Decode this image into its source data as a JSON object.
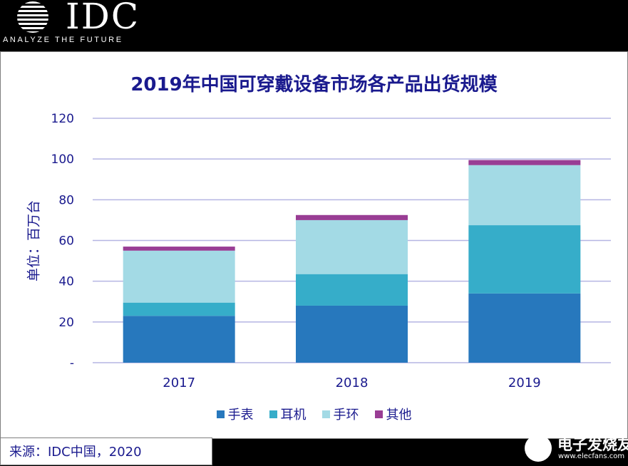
{
  "header": {
    "logo_text": "IDC",
    "tagline": "ANALYZE THE FUTURE"
  },
  "chart_data": {
    "type": "bar",
    "stacked": true,
    "title": "2019年中国可穿戴设备市场各产品出货规模",
    "ylabel": "单位：百万台",
    "xlabel": "",
    "categories": [
      "2017",
      "2018",
      "2019"
    ],
    "ylim": [
      0,
      120
    ],
    "yticks": [
      0,
      20,
      40,
      60,
      80,
      100,
      120
    ],
    "ytick_labels": [
      "-",
      "20",
      "40",
      "60",
      "80",
      "100",
      "120"
    ],
    "grid": true,
    "legend_position": "bottom",
    "series": [
      {
        "name": "手表",
        "color": "#2778bd",
        "values": [
          23,
          28,
          34
        ]
      },
      {
        "name": "耳机",
        "color": "#36adc9",
        "values": [
          6.5,
          15.5,
          33.5
        ]
      },
      {
        "name": "手环",
        "color": "#a3dae5",
        "values": [
          25.5,
          26.5,
          29.5
        ]
      },
      {
        "name": "其他",
        "color": "#993d94",
        "values": [
          2,
          2.5,
          2.5
        ]
      }
    ]
  },
  "footer": {
    "source": "来源：IDC中国，2020",
    "watermark_main": "电子发烧友",
    "watermark_url": "www.elecfans.com"
  }
}
